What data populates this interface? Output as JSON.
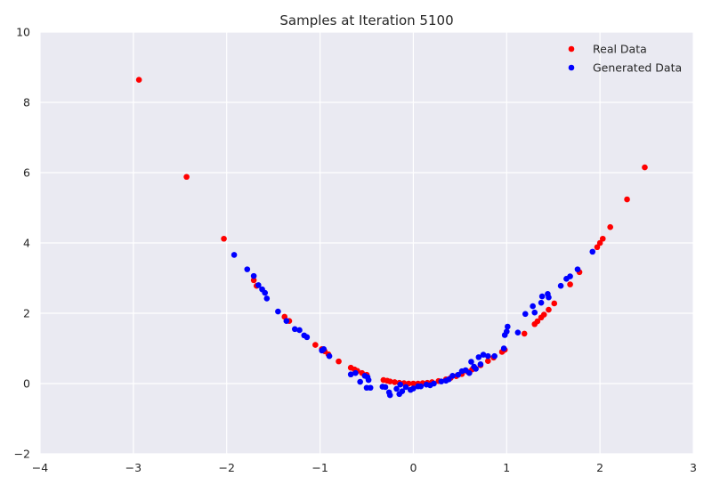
{
  "chart_data": {
    "type": "scatter",
    "title": "Samples at Iteration 5100",
    "xlabel": "",
    "ylabel": "",
    "xlim": [
      -4,
      3
    ],
    "ylim": [
      -2,
      10
    ],
    "xticks": [
      "−4",
      "−3",
      "−2",
      "−1",
      "0",
      "1",
      "2",
      "3"
    ],
    "xtick_values": [
      -4,
      -3,
      -2,
      -1,
      0,
      1,
      2,
      3
    ],
    "yticks": [
      "−2",
      "0",
      "2",
      "4",
      "6",
      "8",
      "10"
    ],
    "ytick_values": [
      -2,
      0,
      2,
      4,
      6,
      8,
      10
    ],
    "grid": true,
    "legend_position": "top-right",
    "colors": {
      "background": "#eaeaf2",
      "grid": "#ffffff",
      "real": "#ff0000",
      "generated": "#0000ff"
    },
    "series": [
      {
        "name": "Real Data",
        "color": "#ff0000",
        "points": [
          [
            -2.94,
            8.64
          ],
          [
            -2.43,
            5.88
          ],
          [
            -2.03,
            4.12
          ],
          [
            -1.71,
            2.94
          ],
          [
            -1.68,
            2.78
          ],
          [
            -1.38,
            1.9
          ],
          [
            -1.33,
            1.78
          ],
          [
            -1.05,
            1.1
          ],
          [
            -0.98,
            0.98
          ],
          [
            -0.95,
            0.92
          ],
          [
            -0.91,
            0.83
          ],
          [
            -0.8,
            0.63
          ],
          [
            -0.67,
            0.45
          ],
          [
            -0.63,
            0.4
          ],
          [
            -0.6,
            0.36
          ],
          [
            -0.55,
            0.3
          ],
          [
            -0.5,
            0.25
          ],
          [
            -0.32,
            0.1
          ],
          [
            -0.28,
            0.08
          ],
          [
            -0.25,
            0.06
          ],
          [
            -0.2,
            0.04
          ],
          [
            -0.15,
            0.02
          ],
          [
            -0.1,
            0.01
          ],
          [
            -0.05,
            0.0
          ],
          [
            0.0,
            0.0
          ],
          [
            0.05,
            0.0
          ],
          [
            0.1,
            0.01
          ],
          [
            0.15,
            0.02
          ],
          [
            0.2,
            0.04
          ],
          [
            0.27,
            0.07
          ],
          [
            0.35,
            0.12
          ],
          [
            0.4,
            0.16
          ],
          [
            0.46,
            0.21
          ],
          [
            0.52,
            0.27
          ],
          [
            0.58,
            0.34
          ],
          [
            0.63,
            0.4
          ],
          [
            0.72,
            0.52
          ],
          [
            0.8,
            0.64
          ],
          [
            0.86,
            0.74
          ],
          [
            0.95,
            0.9
          ],
          [
            0.98,
            0.96
          ],
          [
            1.19,
            1.42
          ],
          [
            1.3,
            1.69
          ],
          [
            1.33,
            1.77
          ],
          [
            1.37,
            1.88
          ],
          [
            1.4,
            1.96
          ],
          [
            1.45,
            2.1
          ],
          [
            1.51,
            2.28
          ],
          [
            1.68,
            2.82
          ],
          [
            1.78,
            3.17
          ],
          [
            1.97,
            3.88
          ],
          [
            2.0,
            4.0
          ],
          [
            2.03,
            4.12
          ],
          [
            2.11,
            4.45
          ],
          [
            2.29,
            5.24
          ],
          [
            2.48,
            6.15
          ]
        ]
      },
      {
        "name": "Generated Data",
        "color": "#0000ff",
        "points": [
          [
            -1.92,
            3.66
          ],
          [
            -1.78,
            3.25
          ],
          [
            -1.71,
            3.06
          ],
          [
            -1.66,
            2.8
          ],
          [
            -1.62,
            2.68
          ],
          [
            -1.59,
            2.58
          ],
          [
            -1.57,
            2.42
          ],
          [
            -1.45,
            2.05
          ],
          [
            -1.36,
            1.78
          ],
          [
            -1.27,
            1.55
          ],
          [
            -1.22,
            1.52
          ],
          [
            -1.17,
            1.37
          ],
          [
            -1.14,
            1.32
          ],
          [
            -0.98,
            0.94
          ],
          [
            -0.96,
            0.98
          ],
          [
            -0.9,
            0.78
          ],
          [
            -0.67,
            0.26
          ],
          [
            -0.62,
            0.3
          ],
          [
            -0.57,
            0.05
          ],
          [
            -0.52,
            0.22
          ],
          [
            -0.49,
            0.18
          ],
          [
            -0.48,
            0.1
          ],
          [
            -0.5,
            -0.12
          ],
          [
            -0.46,
            -0.12
          ],
          [
            -0.33,
            -0.09
          ],
          [
            -0.3,
            -0.1
          ],
          [
            -0.26,
            -0.25
          ],
          [
            -0.25,
            -0.33
          ],
          [
            -0.18,
            -0.15
          ],
          [
            -0.15,
            -0.3
          ],
          [
            -0.14,
            -0.03
          ],
          [
            -0.12,
            -0.22
          ],
          [
            -0.08,
            -0.1
          ],
          [
            -0.03,
            -0.18
          ],
          [
            0.0,
            -0.14
          ],
          [
            0.05,
            -0.08
          ],
          [
            0.08,
            -0.08
          ],
          [
            0.14,
            -0.03
          ],
          [
            0.18,
            -0.05
          ],
          [
            0.22,
            0.0
          ],
          [
            0.3,
            0.06
          ],
          [
            0.35,
            0.08
          ],
          [
            0.38,
            0.12
          ],
          [
            0.42,
            0.22
          ],
          [
            0.48,
            0.25
          ],
          [
            0.52,
            0.35
          ],
          [
            0.56,
            0.38
          ],
          [
            0.6,
            0.3
          ],
          [
            0.62,
            0.62
          ],
          [
            0.65,
            0.48
          ],
          [
            0.67,
            0.42
          ],
          [
            0.7,
            0.75
          ],
          [
            0.72,
            0.55
          ],
          [
            0.75,
            0.82
          ],
          [
            0.8,
            0.78
          ],
          [
            0.87,
            0.78
          ],
          [
            0.97,
            1.0
          ],
          [
            0.98,
            1.38
          ],
          [
            1.0,
            1.48
          ],
          [
            1.01,
            1.62
          ],
          [
            1.12,
            1.45
          ],
          [
            1.2,
            1.98
          ],
          [
            1.28,
            2.2
          ],
          [
            1.3,
            2.02
          ],
          [
            1.37,
            2.3
          ],
          [
            1.38,
            2.48
          ],
          [
            1.44,
            2.55
          ],
          [
            1.45,
            2.45
          ],
          [
            1.58,
            2.78
          ],
          [
            1.64,
            2.98
          ],
          [
            1.68,
            3.05
          ],
          [
            1.76,
            3.25
          ],
          [
            1.92,
            3.75
          ]
        ]
      }
    ]
  }
}
